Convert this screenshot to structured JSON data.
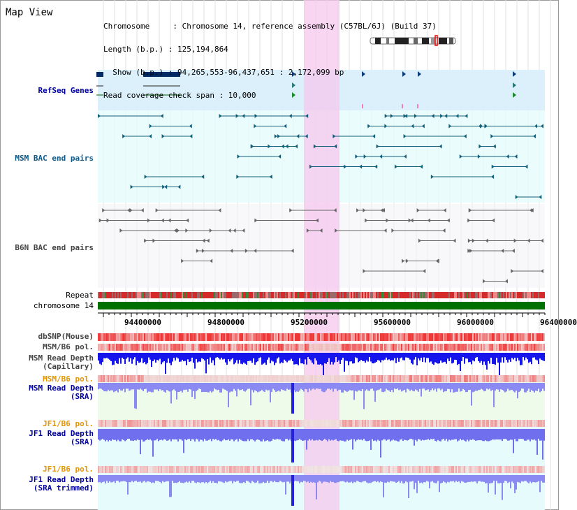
{
  "page": {
    "title": "Map View"
  },
  "info": {
    "chromosome_line": "Chromosome     : Chromosome 14, reference assembly (C57BL/6J) (Build 37)",
    "length_line": "Length (b.p.) : 125,194,864",
    "show_line": "  Show (b.p.) : 94,265,553-96,437,651 : 2,172,099 bp",
    "coverage_line": "Read coverage check span : 10,000"
  },
  "tracks": {
    "refseq": "RefSeq Genes",
    "msm_bac": "MSM BAC end pairs",
    "b6n_bac": "B6N BAC end pairs",
    "repeat": "Repeat",
    "chromosome": "chromosome 14",
    "dbsnp": "dbSNP(Mouse)",
    "msm_pol_1": "MSM/B6 pol.",
    "msm_depth_cap_1": "MSM Read Depth",
    "msm_depth_cap_2": "(Capillary)",
    "msm_pol_2": "MSM/B6 pol.",
    "msm_depth_sra_1": "MSM Read Depth",
    "msm_depth_sra_2": "(SRA)",
    "jf1_pol_1": "JF1/B6 pol.",
    "jf1_depth_sra_1": "JF1 Read Depth",
    "jf1_depth_sra_2": "(SRA)",
    "jf1_pol_2": "JF1/B6 pol.",
    "jf1_depth_trim_1": "JF1 Read Depth",
    "jf1_depth_trim_2": "(SRA trimmed)"
  },
  "axis": {
    "ticks": [
      "94400000",
      "94800000",
      "95200000",
      "95600000",
      "96000000",
      "96400000"
    ]
  },
  "colors": {
    "highlight": "#f7d6ef",
    "refseq_bg": "#dcf0fb",
    "bac_bg": "#e6fbfb",
    "repeat": "#d23030",
    "chromosome": "#007000",
    "snp": "#f06060",
    "depth_capillary": "#1010ee",
    "depth_sra": "#8888f0"
  }
}
